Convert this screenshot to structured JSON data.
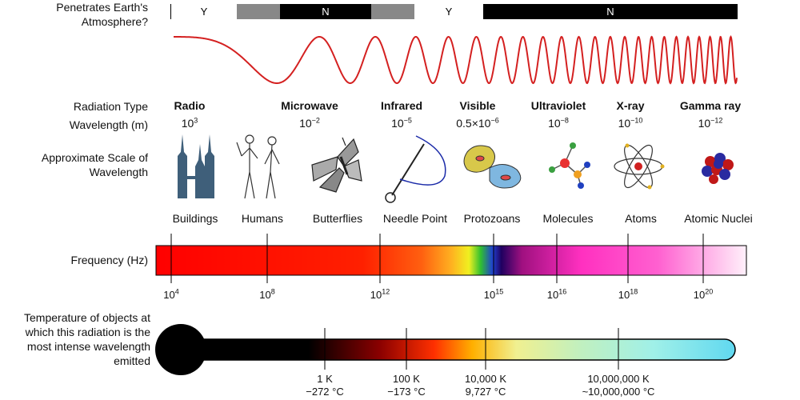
{
  "labels": {
    "penetrates": "Penetrates Earth's Atmosphere?",
    "radiation_type": "Radiation Type",
    "wavelength": "Wavelength (m)",
    "scale": "Approximate Scale of Wavelength",
    "frequency": "Frequency (Hz)",
    "temperature": "Temperature of objects at which this radiation is the most intense wavelength emitted"
  },
  "atmosphere": [
    {
      "label": "Y",
      "color": "#ffffff",
      "text_color": "#000000"
    },
    {
      "label": "",
      "color": "#888888",
      "text_color": "#ffffff"
    },
    {
      "label": "N",
      "color": "#000000",
      "text_color": "#ffffff"
    },
    {
      "label": "",
      "color": "#888888",
      "text_color": "#ffffff"
    },
    {
      "label": "Y",
      "color": "#ffffff",
      "text_color": "#000000"
    },
    {
      "label": "N",
      "color": "#000000",
      "text_color": "#ffffff"
    }
  ],
  "radiation_types": [
    {
      "name": "Radio",
      "wl_base": "10",
      "wl_exp": "3",
      "scale": "Buildings",
      "icon": "buildings-icon"
    },
    {
      "name": "Microwave",
      "wl_base": "10",
      "wl_exp": "−2",
      "scale": "Humans",
      "icon": "humans-icon"
    },
    {
      "name": "Infrared",
      "wl_base": "10",
      "wl_exp": "−5",
      "scale": "Butterflies",
      "icon": "butterfly-icon"
    },
    {
      "name": "Visible",
      "wl_base": "0.5×10",
      "wl_exp": "−6",
      "scale": "Needle Point",
      "icon": "needle-icon"
    },
    {
      "name": "Ultraviolet",
      "wl_base": "10",
      "wl_exp": "−8",
      "scale": "Protozoans",
      "icon": "protozoan-icon"
    },
    {
      "name": "X-ray",
      "wl_base": "10",
      "wl_exp": "−10",
      "scale": "Molecules",
      "icon": "molecule-icon"
    },
    {
      "name": "Gamma ray",
      "wl_base": "10",
      "wl_exp": "−12",
      "scale": "Atoms",
      "icon": "atom-icon"
    }
  ],
  "extra_scale": {
    "scale": "Atomic Nuclei",
    "icon": "nucleus-icon"
  },
  "frequency_ticks": [
    {
      "base": "10",
      "exp": "4"
    },
    {
      "base": "10",
      "exp": "8"
    },
    {
      "base": "10",
      "exp": "12"
    },
    {
      "base": "10",
      "exp": "15"
    },
    {
      "base": "10",
      "exp": "16"
    },
    {
      "base": "10",
      "exp": "18"
    },
    {
      "base": "10",
      "exp": "20"
    }
  ],
  "temperature_ticks": [
    {
      "kelvin": "1 K",
      "celsius": "−272 °C"
    },
    {
      "kelvin": "100 K",
      "celsius": "−173 °C"
    },
    {
      "kelvin": "10,000 K",
      "celsius": "9,727 °C"
    },
    {
      "kelvin": "10,000,000 K",
      "celsius": "~10,000,000 °C"
    }
  ],
  "colors": {
    "wave": "#d42020",
    "accent_red": "#ff0000"
  }
}
